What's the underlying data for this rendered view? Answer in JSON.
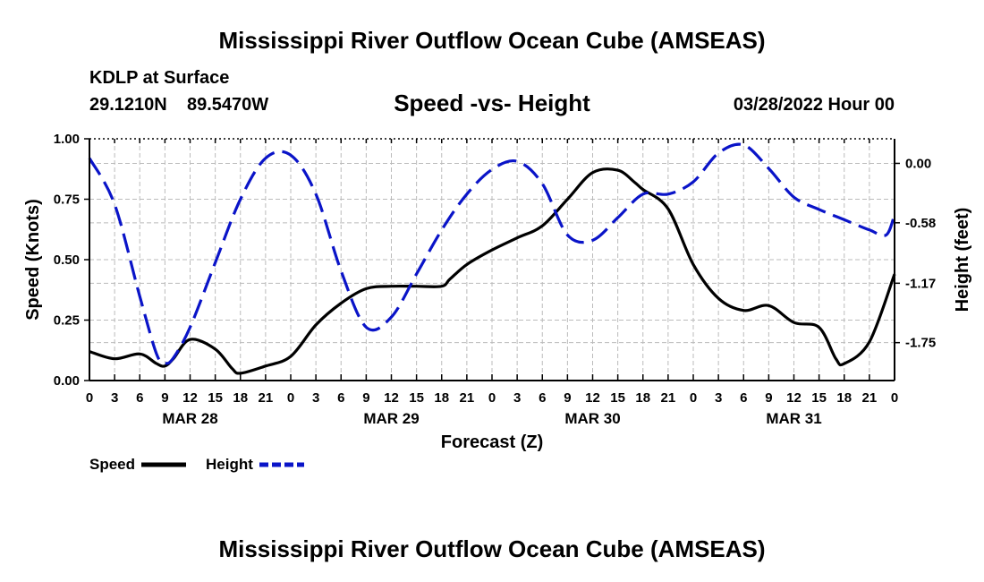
{
  "header": {
    "title": "Mississippi River Outflow Ocean Cube (AMSEAS)",
    "station": "KDLP at Surface",
    "lat": "29.1210N",
    "lon": "89.5470W",
    "subtitle": "Speed -vs- Height",
    "date": "03/28/2022 Hour 00"
  },
  "footer": {
    "title": "Mississippi River Outflow Ocean Cube (AMSEAS)"
  },
  "legend": {
    "speed_label": "Speed",
    "height_label": "Height"
  },
  "colors": {
    "speed": "#000000",
    "height": "#0a14c8",
    "grid": "#bbbbbb"
  },
  "chart_data": {
    "type": "line",
    "xlabel": "Forecast (Z)",
    "ylabel_left": "Speed (Knots)",
    "ylabel_right": "Height (feet)",
    "xlim": [
      0,
      96
    ],
    "ylim_left": [
      0,
      1
    ],
    "ylim_right": [
      -2.12,
      0.24
    ],
    "x_tick_labels": [
      "0",
      "3",
      "6",
      "9",
      "12",
      "15",
      "18",
      "21",
      "0",
      "3",
      "6",
      "9",
      "12",
      "15",
      "18",
      "21",
      "0",
      "3",
      "6",
      "9",
      "12",
      "15",
      "18",
      "21",
      "0",
      "3",
      "6",
      "9",
      "12",
      "15",
      "18",
      "21",
      "0"
    ],
    "day_labels": [
      {
        "x": 12,
        "label": "MAR 28"
      },
      {
        "x": 36,
        "label": "MAR 29"
      },
      {
        "x": 60,
        "label": "MAR 30"
      },
      {
        "x": 84,
        "label": "MAR 31"
      }
    ],
    "y_left_ticks": [
      {
        "value": 0.0,
        "label": "0.00"
      },
      {
        "value": 0.25,
        "label": "0.25"
      },
      {
        "value": 0.5,
        "label": "0.50"
      },
      {
        "value": 0.75,
        "label": "0.75"
      },
      {
        "value": 1.0,
        "label": "1.00"
      }
    ],
    "y_right_ticks": [
      {
        "value": 0.0,
        "label": "0.00"
      },
      {
        "value": -0.58,
        "label": "-0.58"
      },
      {
        "value": -1.17,
        "label": "-1.17"
      },
      {
        "value": -1.75,
        "label": "-1.75"
      }
    ],
    "grid": true,
    "series": [
      {
        "name": "Speed",
        "axis": "left",
        "style": "solid",
        "x": [
          0,
          3,
          6,
          8,
          9,
          10,
          12,
          15,
          17,
          18,
          21,
          24,
          27,
          30,
          33,
          36,
          39,
          42,
          43,
          45,
          48,
          51,
          54,
          57,
          60,
          63,
          65,
          66,
          69,
          72,
          75,
          78,
          81,
          84,
          87,
          89,
          90,
          93,
          96
        ],
        "y": [
          0.12,
          0.09,
          0.11,
          0.07,
          0.06,
          0.09,
          0.17,
          0.13,
          0.05,
          0.03,
          0.06,
          0.1,
          0.23,
          0.32,
          0.38,
          0.39,
          0.39,
          0.39,
          0.42,
          0.48,
          0.54,
          0.59,
          0.64,
          0.75,
          0.86,
          0.87,
          0.82,
          0.79,
          0.71,
          0.48,
          0.34,
          0.29,
          0.31,
          0.24,
          0.22,
          0.09,
          0.07,
          0.16,
          0.44
        ]
      },
      {
        "name": "Height",
        "axis": "right",
        "style": "dashed",
        "x": [
          0,
          3,
          6,
          8,
          9,
          10,
          12,
          15,
          18,
          21,
          24,
          27,
          30,
          33,
          36,
          39,
          42,
          45,
          48,
          51,
          54,
          57,
          60,
          63,
          66,
          69,
          72,
          75,
          78,
          81,
          84,
          87,
          90,
          93,
          95,
          96
        ],
        "y": [
          0.05,
          -0.4,
          -1.3,
          -1.86,
          -1.95,
          -1.9,
          -1.6,
          -0.97,
          -0.35,
          0.05,
          0.08,
          -0.3,
          -1.05,
          -1.6,
          -1.5,
          -1.08,
          -0.65,
          -0.3,
          -0.06,
          0.02,
          -0.2,
          -0.7,
          -0.75,
          -0.53,
          -0.3,
          -0.3,
          -0.18,
          0.1,
          0.18,
          -0.05,
          -0.33,
          -0.45,
          -0.55,
          -0.65,
          -0.7,
          -0.5
        ]
      }
    ]
  }
}
